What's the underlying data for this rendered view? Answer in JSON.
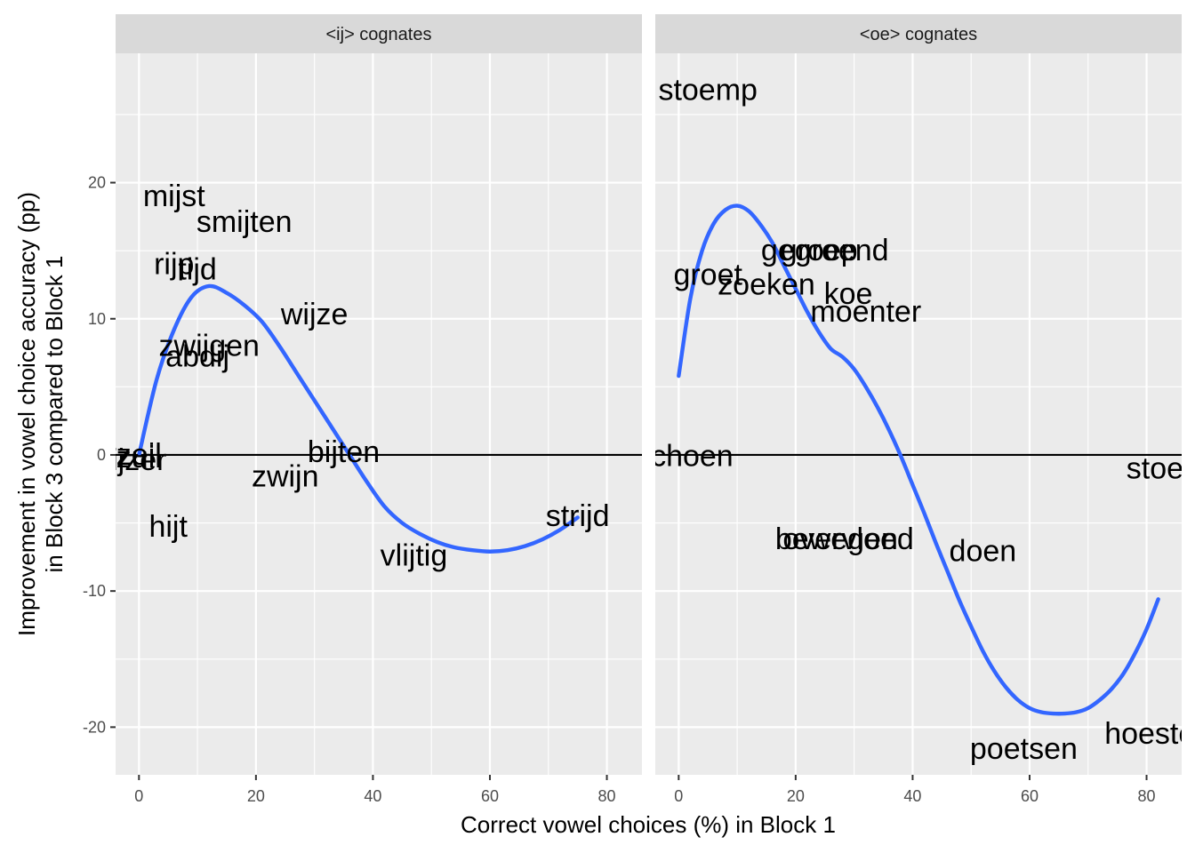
{
  "chart_data": {
    "type": "scatter",
    "xlabel": "Correct vowel choices (%) in Block 1",
    "ylabel_lines": [
      "Improvement in vowel choice accuracy (pp)",
      "in Block 3 compared to Block 1"
    ],
    "xlim": [
      -4,
      86
    ],
    "ylim": [
      -23.5,
      29.5
    ],
    "x_ticks": [
      0,
      20,
      40,
      60,
      80
    ],
    "y_ticks": [
      -20,
      -10,
      0,
      10,
      20
    ],
    "x_tick_labels": [
      "0",
      "20",
      "40",
      "60",
      "80"
    ],
    "y_tick_labels": [
      "-20",
      "-10",
      "0",
      "10",
      "20"
    ],
    "hline_y": 0,
    "grid": true,
    "colors": {
      "panel_bg": "#ebebeb",
      "grid": "#ffffff",
      "strip_bg": "#d9d9d9",
      "smooth": "#3366ff",
      "hline": "#000000"
    },
    "panels": [
      {
        "strip": "<ij> cognates",
        "points": [
          {
            "label": "mijst",
            "x": 6,
            "y": 19
          },
          {
            "label": "smijten",
            "x": 18,
            "y": 17.1
          },
          {
            "label": "rijp",
            "x": 6,
            "y": 14
          },
          {
            "label": "tijd",
            "x": 10,
            "y": 13.6
          },
          {
            "label": "wijze",
            "x": 30,
            "y": 10.3
          },
          {
            "label": "zwijgen",
            "x": 12,
            "y": 8
          },
          {
            "label": "abdij",
            "x": 10,
            "y": 7.2
          },
          {
            "label": "zeil",
            "x": 0,
            "y": 0
          },
          {
            "label": "zuil",
            "x": 0,
            "y": -0.2
          },
          {
            "label": "ijzer",
            "x": 0,
            "y": -0.4
          },
          {
            "label": "bijten",
            "x": 35,
            "y": 0.2
          },
          {
            "label": "zwijn",
            "x": 25,
            "y": -1.6
          },
          {
            "label": "hijt",
            "x": 5,
            "y": -5.3
          },
          {
            "label": "strijd",
            "x": 75,
            "y": -4.5
          },
          {
            "label": "vlijtig",
            "x": 47,
            "y": -7.4
          }
        ],
        "smooth": {
          "x": [
            0,
            3,
            6,
            9,
            12,
            15,
            18,
            21,
            24,
            27,
            30,
            33,
            36,
            39,
            42,
            45,
            48,
            51,
            54,
            57,
            60,
            63,
            66,
            69,
            72,
            75
          ],
          "y": [
            0,
            5.5,
            9.2,
            11.6,
            12.4,
            11.9,
            11,
            9.8,
            8,
            6,
            4,
            2,
            0,
            -2,
            -3.8,
            -5,
            -5.8,
            -6.4,
            -6.8,
            -7,
            -7.1,
            -7,
            -6.7,
            -6.2,
            -5.5,
            -4.6
          ]
        }
      },
      {
        "strip": "<oe> cognates",
        "points": [
          {
            "label": "stoemp",
            "x": 5,
            "y": 26.8
          },
          {
            "label": "gegroend",
            "x": 25,
            "y": 15
          },
          {
            "label": "groep",
            "x": 24,
            "y": 15
          },
          {
            "label": "groet",
            "x": 5,
            "y": 13.2
          },
          {
            "label": "zoeken",
            "x": 15,
            "y": 12.5
          },
          {
            "label": "koe",
            "x": 29,
            "y": 11.8
          },
          {
            "label": "moenter",
            "x": 32,
            "y": 10.5
          },
          {
            "label": "schoen",
            "x": 1,
            "y": -0.1
          },
          {
            "label": "stoel",
            "x": 82,
            "y": -1
          },
          {
            "label": "bewegen",
            "x": 27,
            "y": -6.2
          },
          {
            "label": "overvloed",
            "x": 29,
            "y": -6.2
          },
          {
            "label": "doen",
            "x": 52,
            "y": -7.1
          },
          {
            "label": "hoesten",
            "x": 82,
            "y": -20.5
          },
          {
            "label": "poetsen",
            "x": 59,
            "y": -21.6
          }
        ],
        "smooth": {
          "x": [
            0,
            2,
            4,
            6,
            8,
            10,
            12,
            14,
            16,
            18,
            20,
            22,
            24,
            26,
            28,
            30,
            32,
            34,
            36,
            38,
            40,
            42,
            44,
            46,
            48,
            50,
            52,
            54,
            56,
            58,
            60,
            62,
            64,
            66,
            68,
            70,
            72,
            74,
            76,
            78,
            80,
            82
          ],
          "y": [
            5.8,
            11.5,
            15,
            17,
            18,
            18.3,
            17.9,
            16.9,
            15.6,
            13.9,
            12.2,
            10.5,
            9,
            7.8,
            7.2,
            6.3,
            5,
            3.5,
            1.8,
            -0.1,
            -2.2,
            -4.3,
            -6.5,
            -8.6,
            -10.7,
            -12.6,
            -14.4,
            -15.9,
            -17.1,
            -18,
            -18.6,
            -18.9,
            -19,
            -19,
            -18.9,
            -18.6,
            -18,
            -17.2,
            -16.1,
            -14.6,
            -12.8,
            -10.6
          ]
        }
      }
    ]
  }
}
